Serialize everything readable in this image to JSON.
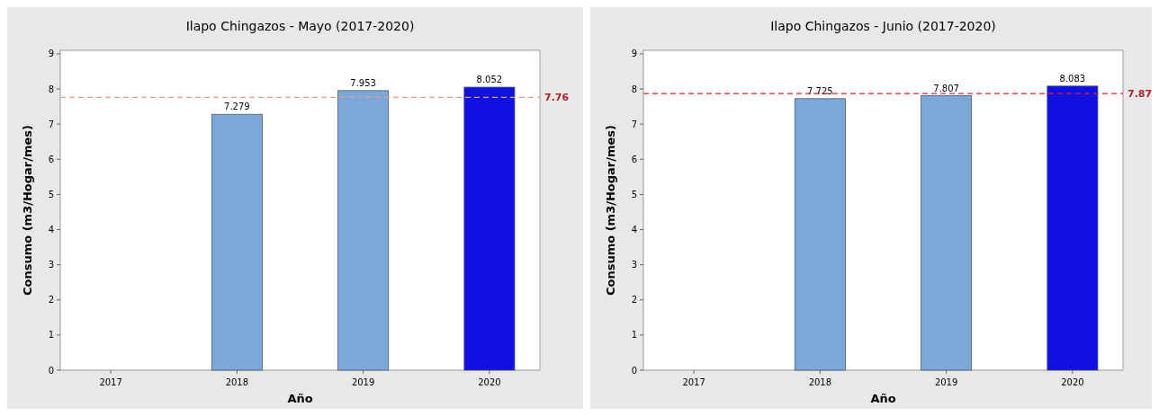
{
  "chart_data": [
    {
      "type": "bar",
      "title": "Ilapo Chingazos - Mayo (2017-2020)",
      "xlabel": "Año",
      "ylabel": "Consumo (m3/Hogar/mes)",
      "categories": [
        "2017",
        "2018",
        "2019",
        "2020"
      ],
      "values": [
        null,
        7.279,
        7.953,
        8.052
      ],
      "colors": [
        null,
        "#7ba7d9",
        "#7ba7d9",
        "#1010e0"
      ],
      "ylim": [
        0,
        9.1
      ],
      "yticks": [
        0,
        1,
        2,
        3,
        4,
        5,
        6,
        7,
        8,
        9
      ],
      "data_labels": true,
      "grid": false,
      "ref_lines": [
        {
          "axis": "y",
          "value": 7.76,
          "label": "7.76",
          "color": "#e89a8a",
          "line_style": "dashed"
        }
      ]
    },
    {
      "type": "bar",
      "title": "Ilapo Chingazos - Junio (2017-2020)",
      "xlabel": "Año",
      "ylabel": "Consumo (m3/Hogar/mes)",
      "categories": [
        "2017",
        "2018",
        "2019",
        "2020"
      ],
      "values": [
        null,
        7.725,
        7.807,
        8.083
      ],
      "colors": [
        null,
        "#7ba7d9",
        "#7ba7d9",
        "#1010e0"
      ],
      "ylim": [
        0,
        9.1
      ],
      "yticks": [
        0,
        1,
        2,
        3,
        4,
        5,
        6,
        7,
        8,
        9
      ],
      "data_labels": true,
      "grid": false,
      "ref_lines": [
        {
          "axis": "y",
          "value": 7.87,
          "label": "7.87",
          "color": "#e0202a",
          "line_style": "dashed"
        }
      ]
    }
  ]
}
